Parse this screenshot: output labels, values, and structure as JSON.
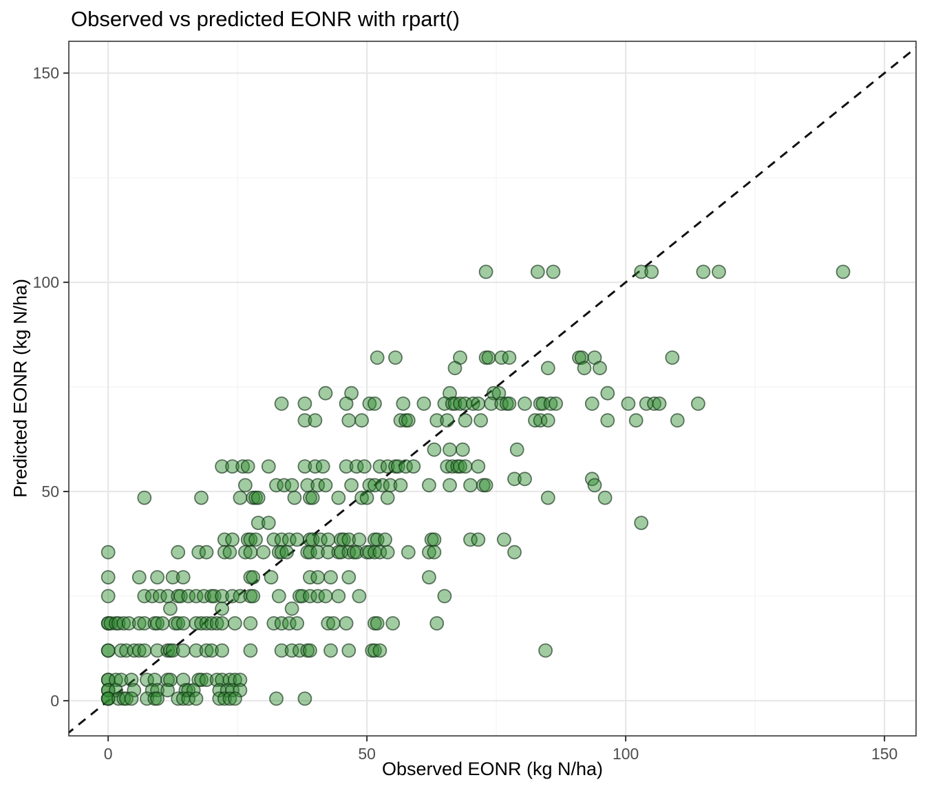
{
  "title": "Observed vs predicted EONR with rpart()",
  "chart_data": {
    "type": "scatter",
    "title": "Observed vs predicted EONR with rpart()",
    "xlabel": "Observed EONR (kg N/ha)",
    "ylabel": "Predicted EONR (kg N/ha)",
    "xlim": [
      -7.6,
      156.1
    ],
    "ylim": [
      -8.4,
      157.6
    ],
    "x_major_ticks": [
      0,
      50,
      100,
      150
    ],
    "x_minor_ticks": [
      25,
      75,
      125
    ],
    "y_major_ticks": [
      0,
      50,
      100,
      150
    ],
    "y_minor_ticks": [
      25,
      75,
      125
    ],
    "x_tick_labels": [
      "0",
      "50",
      "100",
      "150"
    ],
    "y_tick_labels": [
      "0",
      "50",
      "100",
      "150"
    ],
    "grid": {
      "major_color": "#e7e7e7",
      "minor_color": "#f4f4f4",
      "background": "#ffffff",
      "panel_border": "#333333"
    },
    "identity_line": {
      "equation": "y = x",
      "style": "dashed",
      "color": "#111111",
      "dash": "13 10",
      "width": 3
    },
    "point_style": {
      "radius_px": 9.5,
      "fill": "#2e8b2e",
      "fill_opacity": 0.45,
      "stroke": "#16331a",
      "stroke_opacity": 0.65,
      "stroke_width": 1.8
    },
    "tick_label_color": "#4d4d4d",
    "points": [
      [
        73,
        102.5
      ],
      [
        83,
        102.5
      ],
      [
        86,
        102.5
      ],
      [
        103,
        102.5
      ],
      [
        105,
        102.5
      ],
      [
        115,
        102.5
      ],
      [
        118,
        102.5
      ],
      [
        142,
        102.5
      ],
      [
        52,
        82
      ],
      [
        55.5,
        82
      ],
      [
        68,
        82
      ],
      [
        73,
        82
      ],
      [
        73.5,
        82
      ],
      [
        76,
        82
      ],
      [
        77.5,
        82
      ],
      [
        91,
        82
      ],
      [
        91.5,
        82
      ],
      [
        94,
        82
      ],
      [
        109,
        82
      ],
      [
        67,
        79.5
      ],
      [
        85,
        79.5
      ],
      [
        92,
        79.5
      ],
      [
        95,
        79.5
      ],
      [
        42,
        73.5
      ],
      [
        47,
        73.5
      ],
      [
        66,
        73.5
      ],
      [
        74.5,
        73.5
      ],
      [
        75.5,
        73.5
      ],
      [
        96.5,
        73.5
      ],
      [
        33.5,
        71
      ],
      [
        38,
        71
      ],
      [
        46,
        71
      ],
      [
        50.5,
        71
      ],
      [
        51.5,
        71
      ],
      [
        57,
        71
      ],
      [
        61,
        71
      ],
      [
        65,
        71
      ],
      [
        66.5,
        71
      ],
      [
        67,
        71
      ],
      [
        68,
        71
      ],
      [
        69,
        71
      ],
      [
        70.5,
        71
      ],
      [
        71.5,
        71
      ],
      [
        74,
        71
      ],
      [
        76,
        71
      ],
      [
        77,
        71
      ],
      [
        77.5,
        71
      ],
      [
        80.5,
        71
      ],
      [
        83.5,
        71
      ],
      [
        84,
        71
      ],
      [
        85.5,
        71
      ],
      [
        86.5,
        71
      ],
      [
        93.5,
        71
      ],
      [
        100.5,
        71
      ],
      [
        104,
        71
      ],
      [
        105.5,
        71
      ],
      [
        106.5,
        71
      ],
      [
        114,
        71
      ],
      [
        38,
        67
      ],
      [
        40,
        67
      ],
      [
        46.5,
        67
      ],
      [
        49,
        67
      ],
      [
        56.5,
        67
      ],
      [
        57.5,
        67
      ],
      [
        58,
        67
      ],
      [
        63.5,
        67
      ],
      [
        65.5,
        67
      ],
      [
        69,
        67
      ],
      [
        72,
        67
      ],
      [
        82.5,
        67
      ],
      [
        83.5,
        67
      ],
      [
        85,
        67
      ],
      [
        96.5,
        67
      ],
      [
        102,
        67
      ],
      [
        110,
        67
      ],
      [
        63,
        60
      ],
      [
        66,
        60
      ],
      [
        68.5,
        60
      ],
      [
        79,
        60
      ],
      [
        22,
        56
      ],
      [
        24,
        56
      ],
      [
        26,
        56
      ],
      [
        27,
        56
      ],
      [
        31,
        56
      ],
      [
        38,
        56
      ],
      [
        40,
        56
      ],
      [
        41.5,
        56
      ],
      [
        46,
        56
      ],
      [
        48,
        56
      ],
      [
        49.5,
        56
      ],
      [
        52.5,
        56
      ],
      [
        54,
        56
      ],
      [
        55.5,
        56
      ],
      [
        56,
        56
      ],
      [
        57.5,
        56
      ],
      [
        59,
        56
      ],
      [
        65.5,
        56
      ],
      [
        66.5,
        56
      ],
      [
        67.5,
        56
      ],
      [
        68,
        56
      ],
      [
        69,
        56
      ],
      [
        71.5,
        56
      ],
      [
        78.5,
        53
      ],
      [
        80.5,
        53
      ],
      [
        93.5,
        53
      ],
      [
        26.5,
        51.5
      ],
      [
        32.5,
        51.5
      ],
      [
        34,
        51.5
      ],
      [
        35.5,
        51.5
      ],
      [
        38.5,
        51.5
      ],
      [
        40.5,
        51.5
      ],
      [
        42,
        51.5
      ],
      [
        47,
        51.5
      ],
      [
        50.5,
        51.5
      ],
      [
        51.5,
        51.5
      ],
      [
        53,
        51.5
      ],
      [
        54.5,
        51.5
      ],
      [
        56.5,
        51.5
      ],
      [
        62,
        51.5
      ],
      [
        66,
        51.5
      ],
      [
        70,
        51.5
      ],
      [
        72.5,
        51.5
      ],
      [
        73,
        51.5
      ],
      [
        94,
        51.5
      ],
      [
        7,
        48.5
      ],
      [
        18,
        48.5
      ],
      [
        25.5,
        48.5
      ],
      [
        28,
        48.5
      ],
      [
        28.5,
        48.5
      ],
      [
        29,
        48.5
      ],
      [
        36,
        48.5
      ],
      [
        39,
        48.5
      ],
      [
        39.5,
        48.5
      ],
      [
        44.5,
        48.5
      ],
      [
        49,
        48.5
      ],
      [
        50,
        48.5
      ],
      [
        54,
        48.5
      ],
      [
        85,
        48.5
      ],
      [
        96,
        48.5
      ],
      [
        29,
        42.5
      ],
      [
        31,
        42.5
      ],
      [
        103,
        42.5
      ],
      [
        22.5,
        38.5
      ],
      [
        24,
        38.5
      ],
      [
        27,
        38.5
      ],
      [
        27.5,
        38.5
      ],
      [
        28.5,
        38.5
      ],
      [
        32,
        38.5
      ],
      [
        33.5,
        38.5
      ],
      [
        35,
        38.5
      ],
      [
        36.5,
        38.5
      ],
      [
        39,
        38.5
      ],
      [
        39.5,
        38.5
      ],
      [
        41,
        38.5
      ],
      [
        42.5,
        38.5
      ],
      [
        45,
        38.5
      ],
      [
        45.5,
        38.5
      ],
      [
        46.5,
        38.5
      ],
      [
        48.5,
        38.5
      ],
      [
        51.5,
        38.5
      ],
      [
        52,
        38.5
      ],
      [
        53.5,
        38.5
      ],
      [
        62.5,
        38.5
      ],
      [
        63,
        38.5
      ],
      [
        70,
        38.5
      ],
      [
        71.5,
        38.5
      ],
      [
        76.5,
        38.5
      ],
      [
        0,
        35.5
      ],
      [
        13.5,
        35.5
      ],
      [
        17.5,
        35.5
      ],
      [
        19,
        35.5
      ],
      [
        22.5,
        35.5
      ],
      [
        23.5,
        35.5
      ],
      [
        26.5,
        35.5
      ],
      [
        27.5,
        35.5
      ],
      [
        30,
        35.5
      ],
      [
        33,
        35.5
      ],
      [
        33.5,
        35.5
      ],
      [
        34.5,
        35.5
      ],
      [
        38.5,
        35.5
      ],
      [
        39,
        35.5
      ],
      [
        40.5,
        35.5
      ],
      [
        42.5,
        35.5
      ],
      [
        44.5,
        35.5
      ],
      [
        45,
        35.5
      ],
      [
        46.5,
        35.5
      ],
      [
        47.5,
        35.5
      ],
      [
        48,
        35.5
      ],
      [
        50,
        35.5
      ],
      [
        50.5,
        35.5
      ],
      [
        51.5,
        35.5
      ],
      [
        52.5,
        35.5
      ],
      [
        54,
        35.5
      ],
      [
        58,
        35.5
      ],
      [
        62,
        35.5
      ],
      [
        63,
        35.5
      ],
      [
        78.5,
        35.5
      ],
      [
        0,
        29.5
      ],
      [
        6,
        29.5
      ],
      [
        9.5,
        29.5
      ],
      [
        12.5,
        29.5
      ],
      [
        14.5,
        29.5
      ],
      [
        27.5,
        29.5
      ],
      [
        28,
        29.5
      ],
      [
        31.5,
        29.5
      ],
      [
        39,
        29.5
      ],
      [
        40.5,
        29.5
      ],
      [
        43,
        29.5
      ],
      [
        46.5,
        29.5
      ],
      [
        62,
        29.5
      ],
      [
        0,
        25
      ],
      [
        7,
        25
      ],
      [
        8.5,
        25
      ],
      [
        10,
        25
      ],
      [
        11.5,
        25
      ],
      [
        13.5,
        25
      ],
      [
        14,
        25
      ],
      [
        15.5,
        25
      ],
      [
        17,
        25
      ],
      [
        18.5,
        25
      ],
      [
        20,
        25
      ],
      [
        20.5,
        25
      ],
      [
        22,
        25
      ],
      [
        24,
        25
      ],
      [
        25.5,
        25
      ],
      [
        27.5,
        25
      ],
      [
        28,
        25
      ],
      [
        33,
        25
      ],
      [
        37,
        25
      ],
      [
        37.5,
        25
      ],
      [
        39,
        25
      ],
      [
        40.5,
        25
      ],
      [
        42,
        25
      ],
      [
        44.5,
        25
      ],
      [
        48.5,
        25
      ],
      [
        65,
        25
      ],
      [
        12,
        22
      ],
      [
        22,
        22
      ],
      [
        35.5,
        22
      ],
      [
        0,
        18.5
      ],
      [
        0,
        18.5
      ],
      [
        0.5,
        18.5
      ],
      [
        1.5,
        18.5
      ],
      [
        2,
        18.5
      ],
      [
        3,
        18.5
      ],
      [
        4,
        18.5
      ],
      [
        6,
        18.5
      ],
      [
        7,
        18.5
      ],
      [
        9,
        18.5
      ],
      [
        9.5,
        18.5
      ],
      [
        10.5,
        18.5
      ],
      [
        13,
        18.5
      ],
      [
        13.5,
        18.5
      ],
      [
        14.5,
        18.5
      ],
      [
        17,
        18.5
      ],
      [
        18,
        18.5
      ],
      [
        19,
        18.5
      ],
      [
        20,
        18.5
      ],
      [
        21,
        18.5
      ],
      [
        22,
        18.5
      ],
      [
        24.5,
        18.5
      ],
      [
        27.5,
        18.5
      ],
      [
        32,
        18.5
      ],
      [
        33.5,
        18.5
      ],
      [
        35,
        18.5
      ],
      [
        36.5,
        18.5
      ],
      [
        42.5,
        18.5
      ],
      [
        43.5,
        18.5
      ],
      [
        46,
        18.5
      ],
      [
        51.5,
        18.5
      ],
      [
        52,
        18.5
      ],
      [
        55,
        18.5
      ],
      [
        63.5,
        18.5
      ],
      [
        0,
        12
      ],
      [
        0,
        12
      ],
      [
        2.5,
        12
      ],
      [
        3.5,
        12
      ],
      [
        5,
        12
      ],
      [
        6,
        12
      ],
      [
        7,
        12
      ],
      [
        9.5,
        12
      ],
      [
        11.5,
        12
      ],
      [
        12,
        12
      ],
      [
        12.5,
        12
      ],
      [
        14.5,
        12
      ],
      [
        17,
        12
      ],
      [
        19,
        12
      ],
      [
        20,
        12
      ],
      [
        22,
        12
      ],
      [
        27.5,
        12
      ],
      [
        33.5,
        12
      ],
      [
        35.5,
        12
      ],
      [
        37,
        12
      ],
      [
        38.5,
        12
      ],
      [
        39,
        12
      ],
      [
        43,
        12
      ],
      [
        46.5,
        12
      ],
      [
        51,
        12
      ],
      [
        51.5,
        12
      ],
      [
        52.5,
        12
      ],
      [
        84.5,
        12
      ],
      [
        0,
        5
      ],
      [
        0,
        5
      ],
      [
        1.5,
        5
      ],
      [
        2.5,
        5
      ],
      [
        4.5,
        5
      ],
      [
        7.5,
        5
      ],
      [
        9,
        5
      ],
      [
        11.5,
        5
      ],
      [
        12,
        5
      ],
      [
        14.5,
        5
      ],
      [
        17.5,
        5
      ],
      [
        18,
        5
      ],
      [
        19,
        5
      ],
      [
        21,
        5
      ],
      [
        22,
        5
      ],
      [
        23.5,
        5
      ],
      [
        24.5,
        5
      ],
      [
        25.5,
        5
      ],
      [
        0,
        2.5
      ],
      [
        0,
        2.5
      ],
      [
        1.5,
        2.5
      ],
      [
        5,
        2.5
      ],
      [
        8.5,
        2.5
      ],
      [
        9.5,
        2.5
      ],
      [
        11.5,
        2.5
      ],
      [
        15,
        2.5
      ],
      [
        15.5,
        2.5
      ],
      [
        16.5,
        2.5
      ],
      [
        21.5,
        2.5
      ],
      [
        23,
        2.5
      ],
      [
        24,
        2.5
      ],
      [
        25.5,
        2.5
      ],
      [
        0,
        0.5
      ],
      [
        0,
        0.5
      ],
      [
        0,
        0.5
      ],
      [
        2,
        0.5
      ],
      [
        3,
        0.5
      ],
      [
        3.5,
        0.5
      ],
      [
        4.5,
        0.5
      ],
      [
        7.5,
        0.5
      ],
      [
        9,
        0.5
      ],
      [
        9.5,
        0.5
      ],
      [
        13.5,
        0.5
      ],
      [
        14.5,
        0.5
      ],
      [
        15.5,
        0.5
      ],
      [
        17,
        0.5
      ],
      [
        21.5,
        0.5
      ],
      [
        22.5,
        0.5
      ],
      [
        23.5,
        0.5
      ],
      [
        24.5,
        0.5
      ],
      [
        32.5,
        0.5
      ],
      [
        38,
        0.5
      ]
    ]
  }
}
